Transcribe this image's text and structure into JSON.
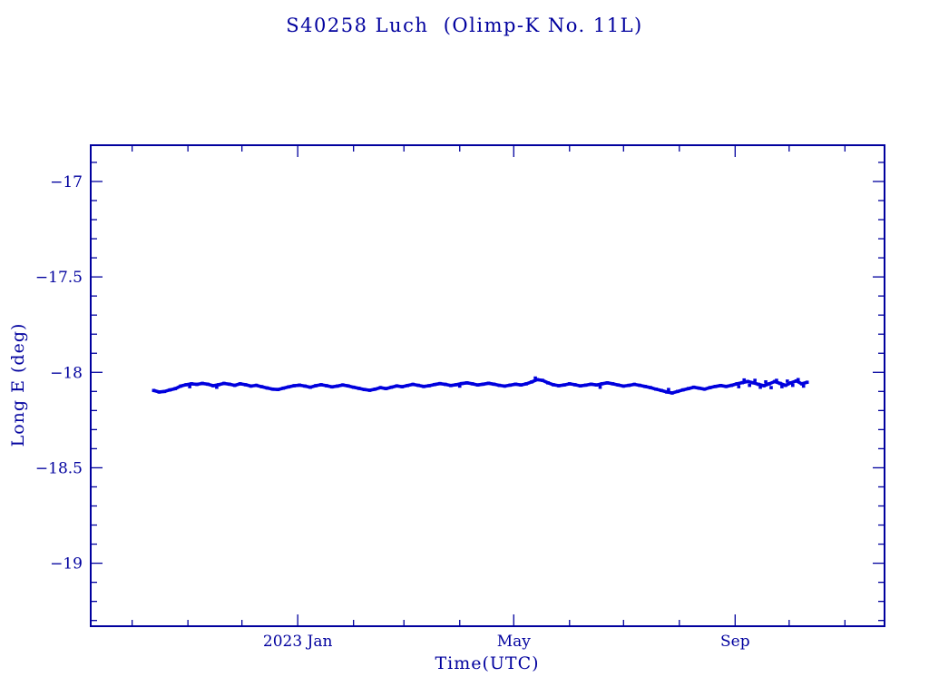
{
  "colors": {
    "frame": "#00009e",
    "data": "#0000dd",
    "background": "#ffffff"
  },
  "chart_data": {
    "type": "scatter",
    "title": "S40258 Luch  (Olimp-K No. 11L)",
    "xlabel": "Time(UTC)",
    "ylabel": "Long E (deg)",
    "x_axis_unit": "days relative to 2023-01-01",
    "xlim": [
      -115,
      326
    ],
    "ylim": [
      -19.33,
      -16.81
    ],
    "grid": false,
    "legend": "none",
    "marker": "filled-square",
    "x_major_ticks": [
      {
        "pos": 0,
        "label": "2023 Jan"
      },
      {
        "pos": 120,
        "label": "May"
      },
      {
        "pos": 243,
        "label": "Sep"
      }
    ],
    "x_minor_ticks": [
      -92,
      -61,
      -31,
      31,
      59,
      90,
      151,
      181,
      212,
      273,
      304
    ],
    "y_major_ticks": [
      {
        "pos": -17,
        "label": "−17"
      },
      {
        "pos": -17.5,
        "label": "−17.5"
      },
      {
        "pos": -18,
        "label": "−18"
      },
      {
        "pos": -18.5,
        "label": "−18.5"
      },
      {
        "pos": -19,
        "label": "−19"
      }
    ],
    "y_minor_step": 0.1,
    "points": [
      [
        -80,
        -18.095
      ],
      [
        -77,
        -18.103
      ],
      [
        -74,
        -18.1
      ],
      [
        -71,
        -18.092
      ],
      [
        -68,
        -18.085
      ],
      [
        -65,
        -18.072
      ],
      [
        -62,
        -18.065
      ],
      [
        -59,
        -18.06
      ],
      [
        -56,
        -18.063
      ],
      [
        -53,
        -18.058
      ],
      [
        -50,
        -18.062
      ],
      [
        -47,
        -18.07
      ],
      [
        -44,
        -18.065
      ],
      [
        -41,
        -18.058
      ],
      [
        -38,
        -18.062
      ],
      [
        -35,
        -18.068
      ],
      [
        -32,
        -18.06
      ],
      [
        -29,
        -18.065
      ],
      [
        -26,
        -18.072
      ],
      [
        -23,
        -18.068
      ],
      [
        -20,
        -18.075
      ],
      [
        -17,
        -18.082
      ],
      [
        -14,
        -18.088
      ],
      [
        -11,
        -18.09
      ],
      [
        -8,
        -18.083
      ],
      [
        -5,
        -18.076
      ],
      [
        -2,
        -18.07
      ],
      [
        1,
        -18.067
      ],
      [
        4,
        -18.072
      ],
      [
        7,
        -18.078
      ],
      [
        10,
        -18.07
      ],
      [
        13,
        -18.065
      ],
      [
        16,
        -18.07
      ],
      [
        19,
        -18.076
      ],
      [
        22,
        -18.072
      ],
      [
        25,
        -18.066
      ],
      [
        28,
        -18.071
      ],
      [
        31,
        -18.078
      ],
      [
        34,
        -18.084
      ],
      [
        37,
        -18.09
      ],
      [
        40,
        -18.094
      ],
      [
        43,
        -18.088
      ],
      [
        46,
        -18.08
      ],
      [
        49,
        -18.085
      ],
      [
        52,
        -18.078
      ],
      [
        55,
        -18.071
      ],
      [
        58,
        -18.075
      ],
      [
        61,
        -18.069
      ],
      [
        64,
        -18.063
      ],
      [
        67,
        -18.068
      ],
      [
        70,
        -18.074
      ],
      [
        73,
        -18.07
      ],
      [
        76,
        -18.064
      ],
      [
        79,
        -18.059
      ],
      [
        82,
        -18.063
      ],
      [
        85,
        -18.069
      ],
      [
        88,
        -18.065
      ],
      [
        91,
        -18.059
      ],
      [
        94,
        -18.055
      ],
      [
        97,
        -18.06
      ],
      [
        100,
        -18.066
      ],
      [
        103,
        -18.062
      ],
      [
        106,
        -18.057
      ],
      [
        109,
        -18.062
      ],
      [
        112,
        -18.068
      ],
      [
        115,
        -18.072
      ],
      [
        118,
        -18.067
      ],
      [
        121,
        -18.062
      ],
      [
        124,
        -18.066
      ],
      [
        127,
        -18.06
      ],
      [
        130,
        -18.05
      ],
      [
        133,
        -18.038
      ],
      [
        136,
        -18.042
      ],
      [
        139,
        -18.055
      ],
      [
        142,
        -18.065
      ],
      [
        145,
        -18.07
      ],
      [
        148,
        -18.066
      ],
      [
        151,
        -18.06
      ],
      [
        154,
        -18.065
      ],
      [
        157,
        -18.071
      ],
      [
        160,
        -18.067
      ],
      [
        163,
        -18.062
      ],
      [
        166,
        -18.066
      ],
      [
        169,
        -18.06
      ],
      [
        172,
        -18.055
      ],
      [
        175,
        -18.06
      ],
      [
        178,
        -18.066
      ],
      [
        181,
        -18.072
      ],
      [
        184,
        -18.068
      ],
      [
        187,
        -18.063
      ],
      [
        190,
        -18.068
      ],
      [
        193,
        -18.074
      ],
      [
        196,
        -18.08
      ],
      [
        199,
        -18.088
      ],
      [
        202,
        -18.095
      ],
      [
        205,
        -18.103
      ],
      [
        208,
        -18.108
      ],
      [
        211,
        -18.1
      ],
      [
        214,
        -18.092
      ],
      [
        217,
        -18.085
      ],
      [
        220,
        -18.078
      ],
      [
        223,
        -18.083
      ],
      [
        226,
        -18.088
      ],
      [
        229,
        -18.08
      ],
      [
        232,
        -18.074
      ],
      [
        235,
        -18.069
      ],
      [
        238,
        -18.074
      ],
      [
        241,
        -18.068
      ],
      [
        244,
        -18.06
      ],
      [
        247,
        -18.054
      ],
      [
        250,
        -18.048
      ],
      [
        253,
        -18.055
      ],
      [
        256,
        -18.063
      ],
      [
        259,
        -18.07
      ],
      [
        262,
        -18.06
      ],
      [
        265,
        -18.048
      ],
      [
        268,
        -18.058
      ],
      [
        271,
        -18.068
      ],
      [
        274,
        -18.055
      ],
      [
        277,
        -18.045
      ],
      [
        280,
        -18.06
      ],
      [
        283,
        -18.052
      ]
    ],
    "extra_points": [
      [
        245,
        -18.075
      ],
      [
        248,
        -18.04
      ],
      [
        251,
        -18.068
      ],
      [
        254,
        -18.042
      ],
      [
        257,
        -18.078
      ],
      [
        260,
        -18.05
      ],
      [
        263,
        -18.08
      ],
      [
        266,
        -18.042
      ],
      [
        269,
        -18.075
      ],
      [
        272,
        -18.046
      ],
      [
        275,
        -18.068
      ],
      [
        278,
        -18.038
      ],
      [
        281,
        -18.072
      ],
      [
        168,
        -18.078
      ],
      [
        90,
        -18.072
      ],
      [
        -45,
        -18.078
      ],
      [
        -60,
        -18.075
      ],
      [
        132,
        -18.03
      ],
      [
        206,
        -18.09
      ]
    ]
  }
}
